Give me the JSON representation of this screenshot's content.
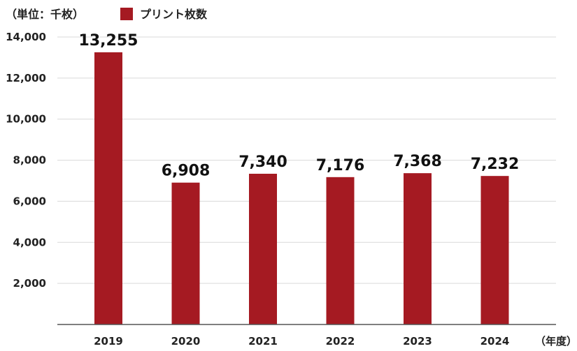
{
  "chart_data": {
    "type": "bar",
    "unit_label": "（単位：千枚）",
    "xunit_label": "（年度）",
    "categories": [
      "2019",
      "2020",
      "2021",
      "2022",
      "2023",
      "2024"
    ],
    "series": [
      {
        "name": "プリント枚数",
        "values": [
          13255,
          6908,
          7340,
          7176,
          7368,
          7232
        ]
      }
    ],
    "data_labels": [
      "13,255",
      "6,908",
      "7,340",
      "7,176",
      "7,368",
      "7,232"
    ],
    "ylim": [
      0,
      14000
    ],
    "yticks": [
      2000,
      4000,
      6000,
      8000,
      10000,
      12000,
      14000
    ],
    "ytick_labels": [
      "2,000",
      "4,000",
      "6,000",
      "8,000",
      "10,000",
      "12,000",
      "14,000"
    ],
    "grid": true,
    "legend_position": "top-left",
    "colors": {
      "bar": "#a51a22",
      "grid": "#d9d9d9",
      "axis": "#555555"
    }
  }
}
